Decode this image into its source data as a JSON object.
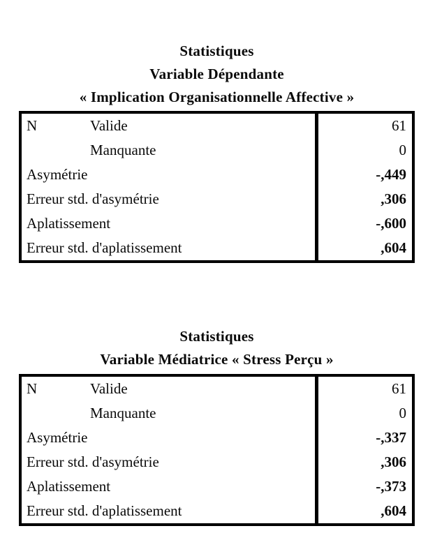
{
  "page": {
    "background_color": "#ffffff",
    "text_color": "#0a0a0a",
    "border_color": "#000000"
  },
  "tables": [
    {
      "title_lines": [
        "Statistiques",
        "Variable Dépendante",
        "« Implication Organisationnelle Affective »"
      ],
      "rows": [
        {
          "label": "N",
          "sublabel": "Valide",
          "value": "61"
        },
        {
          "label": "",
          "sublabel": "Manquante",
          "value": "0"
        },
        {
          "label": "Asymétrie",
          "sublabel": "",
          "value": "-,449"
        },
        {
          "label": "Erreur std. d'asymétrie",
          "sublabel": "",
          "value": ",306"
        },
        {
          "label": "Aplatissement",
          "sublabel": "",
          "value": "-,600"
        },
        {
          "label": "Erreur std. d'aplatissement",
          "sublabel": "",
          "value": ",604"
        }
      ]
    },
    {
      "title_lines": [
        "Statistiques",
        "Variable Médiatrice « Stress Perçu »"
      ],
      "rows": [
        {
          "label": "N",
          "sublabel": "Valide",
          "value": "61"
        },
        {
          "label": "",
          "sublabel": "Manquante",
          "value": "0"
        },
        {
          "label": "Asymétrie",
          "sublabel": "",
          "value": "-,337"
        },
        {
          "label": "Erreur std. d'asymétrie",
          "sublabel": "",
          "value": ",306"
        },
        {
          "label": "Aplatissement",
          "sublabel": "",
          "value": "-,373"
        },
        {
          "label": "Erreur std. d'aplatissement",
          "sublabel": "",
          "value": ",604"
        }
      ]
    }
  ]
}
